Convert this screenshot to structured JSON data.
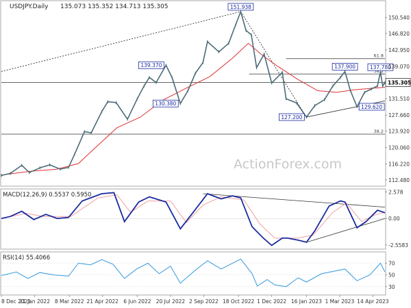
{
  "chart_data": {
    "type": "line",
    "instrument_label": "USDJPY.Daily",
    "ohlc_label": "135.073 135.352 134.713 135.305",
    "watermark": "ActionForex.com",
    "price_panel": {
      "ylim": [
        111.0,
        154.5
      ],
      "y_ticks": [
        "150.540",
        "146.820",
        "142.950",
        "139.070",
        "135.305",
        "131.510",
        "127.660",
        "123.920",
        "120.060",
        "116.220",
        "112.480"
      ],
      "last_price_label": "135.305",
      "ma_series": "55 day EMA",
      "series": [
        {
          "name": "price",
          "points": [
            [
              "2021-12-08",
              113.5
            ],
            [
              "2021-12-20",
              114.0
            ],
            [
              "2022-01-04",
              115.9
            ],
            [
              "2022-01-14",
              114.2
            ],
            [
              "2022-01-28",
              115.3
            ],
            [
              "2022-02-10",
              116.0
            ],
            [
              "2022-02-24",
              115.0
            ],
            [
              "2022-03-07",
              115.4
            ],
            [
              "2022-03-15",
              118.5
            ],
            [
              "2022-03-28",
              123.8
            ],
            [
              "2022-04-06",
              123.5
            ],
            [
              "2022-04-20",
              128.5
            ],
            [
              "2022-04-28",
              130.8
            ],
            [
              "2022-05-09",
              130.6
            ],
            [
              "2022-05-24",
              126.7
            ],
            [
              "2022-06-06",
              131.5
            ],
            [
              "2022-06-15",
              134.5
            ],
            [
              "2022-06-22",
              136.5
            ],
            [
              "2022-07-01",
              135.3
            ],
            [
              "2022-07-14",
              139.37
            ],
            [
              "2022-07-22",
              136.5
            ],
            [
              "2022-08-02",
              130.38
            ],
            [
              "2022-08-12",
              133.4
            ],
            [
              "2022-08-22",
              137.5
            ],
            [
              "2022-09-01",
              140.0
            ],
            [
              "2022-09-07",
              144.9
            ],
            [
              "2022-09-22",
              142.5
            ],
            [
              "2022-10-05",
              144.5
            ],
            [
              "2022-10-14",
              148.7
            ],
            [
              "2022-10-21",
              151.938
            ],
            [
              "2022-10-28",
              147.5
            ],
            [
              "2022-11-04",
              146.5
            ],
            [
              "2022-11-11",
              138.8
            ],
            [
              "2022-11-21",
              142.0
            ],
            [
              "2022-12-01",
              135.2
            ],
            [
              "2022-12-15",
              137.7
            ],
            [
              "2022-12-20",
              131.5
            ],
            [
              "2023-01-03",
              130.5
            ],
            [
              "2023-01-16",
              127.2
            ],
            [
              "2023-01-27",
              129.9
            ],
            [
              "2023-02-09",
              131.3
            ],
            [
              "2023-02-20",
              134.5
            ],
            [
              "2023-03-02",
              136.5
            ],
            [
              "2023-03-08",
              137.9
            ],
            [
              "2023-03-15",
              133.5
            ],
            [
              "2023-03-24",
              129.62
            ],
            [
              "2023-04-03",
              133.0
            ],
            [
              "2023-04-12",
              133.8
            ],
            [
              "2023-04-20",
              134.5
            ],
            [
              "2023-04-24",
              137.78
            ],
            [
              "2023-04-27",
              134.5
            ],
            [
              "2023-04-30",
              135.305
            ]
          ]
        },
        {
          "name": "55 day EMA",
          "points": [
            [
              "2021-12-08",
              113.6
            ],
            [
              "2022-01-15",
              114.5
            ],
            [
              "2022-02-20",
              115.0
            ],
            [
              "2022-03-20",
              116.3
            ],
            [
              "2022-04-10",
              119.8
            ],
            [
              "2022-05-10",
              124.7
            ],
            [
              "2022-06-10",
              127.2
            ],
            [
              "2022-07-10",
              131.2
            ],
            [
              "2022-08-10",
              134.0
            ],
            [
              "2022-09-10",
              136.7
            ],
            [
              "2022-10-10",
              141.0
            ],
            [
              "2022-10-31",
              144.5
            ],
            [
              "2022-11-20",
              141.5
            ],
            [
              "2022-12-10",
              139.0
            ],
            [
              "2023-01-05",
              136.0
            ],
            [
              "2023-01-31",
              133.4
            ],
            [
              "2023-02-25",
              133.0
            ],
            [
              "2023-03-20",
              133.6
            ],
            [
              "2023-04-10",
              133.9
            ],
            [
              "2023-04-30",
              134.2
            ]
          ]
        }
      ],
      "price_labels": [
        {
          "text": "151.938",
          "date": "2022-10-21",
          "price": 151.938,
          "pos": "above"
        },
        {
          "text": "139.370",
          "date": "2022-07-14",
          "price": 139.37,
          "pos": "left"
        },
        {
          "text": "130.380",
          "date": "2022-08-02",
          "price": 130.38,
          "pos": "left"
        },
        {
          "text": "137.900",
          "date": "2023-03-08",
          "price": 137.9,
          "pos": "above"
        },
        {
          "text": "137.780",
          "date": "2023-04-24",
          "price": 137.78,
          "pos": "above"
        },
        {
          "text": "127.200",
          "date": "2023-01-16",
          "price": 127.2,
          "pos": "left"
        },
        {
          "text": "129.620",
          "date": "2023-03-24",
          "price": 129.62,
          "pos": "right"
        }
      ],
      "fib_levels": [
        {
          "label": "61.8",
          "price": 140.9,
          "from": "2022-12-20"
        },
        {
          "label": "38.2",
          "price": 137.3,
          "from": "2023-04-26"
        },
        {
          "label": "38.2",
          "price": 123.2,
          "from": "2021-12-08"
        }
      ],
      "trend_lines": [
        {
          "from": [
            "2021-12-08",
            137.9
          ],
          "to": [
            "2022-10-21",
            151.938
          ],
          "dash": true
        },
        {
          "from": [
            "2022-10-21",
            151.938
          ],
          "to": [
            "2023-01-16",
            127.2
          ],
          "dash": true
        },
        {
          "from": [
            "2023-01-16",
            127.2
          ],
          "to": [
            "2023-04-30",
            131.0
          ],
          "dash": false
        }
      ],
      "horizontal_lines": [
        {
          "price": 137.3,
          "from": "2022-11-01",
          "to": "2023-04-30"
        },
        {
          "price": 135.3,
          "from": "2021-12-08",
          "to": "2023-04-30"
        }
      ]
    },
    "macd_panel": {
      "label": "MACD(12,26,9) 0.5537 0.5950",
      "ylim": [
        -2.9,
        2.8
      ],
      "y_ticks": [
        "2.578",
        "0.00",
        "-2.5583"
      ],
      "series": [
        {
          "name": "MACD",
          "points": [
            [
              "2021-12-08",
              0.0
            ],
            [
              "2021-12-20",
              0.2
            ],
            [
              "2022-01-04",
              0.7
            ],
            [
              "2022-01-20",
              -0.1
            ],
            [
              "2022-02-05",
              0.4
            ],
            [
              "2022-02-20",
              0.0
            ],
            [
              "2022-03-07",
              0.1
            ],
            [
              "2022-03-25",
              1.7
            ],
            [
              "2022-04-20",
              2.4
            ],
            [
              "2022-05-06",
              2.5
            ],
            [
              "2022-05-20",
              -0.3
            ],
            [
              "2022-06-08",
              1.6
            ],
            [
              "2022-06-22",
              2.1
            ],
            [
              "2022-07-14",
              1.6
            ],
            [
              "2022-08-02",
              -1.0
            ],
            [
              "2022-08-18",
              0.5
            ],
            [
              "2022-09-07",
              2.4
            ],
            [
              "2022-09-25",
              1.9
            ],
            [
              "2022-10-10",
              2.2
            ],
            [
              "2022-10-21",
              2.0
            ],
            [
              "2022-11-05",
              -0.8
            ],
            [
              "2022-11-20",
              -1.9
            ],
            [
              "2022-12-01",
              -2.6
            ],
            [
              "2022-12-15",
              -1.9
            ],
            [
              "2022-12-22",
              -1.9
            ],
            [
              "2023-01-05",
              -2.1
            ],
            [
              "2023-01-16",
              -2.3
            ],
            [
              "2023-01-27",
              -1.2
            ],
            [
              "2023-02-15",
              1.2
            ],
            [
              "2023-03-02",
              1.7
            ],
            [
              "2023-03-08",
              1.6
            ],
            [
              "2023-03-24",
              -0.9
            ],
            [
              "2023-04-05",
              -0.3
            ],
            [
              "2023-04-20",
              0.8
            ],
            [
              "2023-04-30",
              0.55
            ]
          ]
        },
        {
          "name": "Signal",
          "points": [
            [
              "2021-12-08",
              0.0
            ],
            [
              "2022-01-10",
              0.5
            ],
            [
              "2022-02-01",
              0.2
            ],
            [
              "2022-03-10",
              0.2
            ],
            [
              "2022-04-15",
              2.0
            ],
            [
              "2022-05-10",
              2.3
            ],
            [
              "2022-05-28",
              0.6
            ],
            [
              "2022-06-20",
              1.7
            ],
            [
              "2022-07-20",
              1.7
            ],
            [
              "2022-08-10",
              -0.4
            ],
            [
              "2022-09-01",
              1.3
            ],
            [
              "2022-09-25",
              2.1
            ],
            [
              "2022-10-25",
              1.8
            ],
            [
              "2022-11-15",
              -0.5
            ],
            [
              "2022-12-05",
              -1.9
            ],
            [
              "2023-01-05",
              -1.9
            ],
            [
              "2023-01-25",
              -1.6
            ],
            [
              "2023-02-20",
              0.6
            ],
            [
              "2023-03-10",
              1.5
            ],
            [
              "2023-03-30",
              -0.3
            ],
            [
              "2023-04-15",
              0.3
            ],
            [
              "2023-04-30",
              0.6
            ]
          ]
        }
      ],
      "trend_lines": [
        {
          "from": [
            "2022-09-01",
            2.4
          ],
          "to": [
            "2023-04-30",
            1.1
          ]
        },
        {
          "from": [
            "2023-01-16",
            -2.3
          ],
          "to": [
            "2023-04-30",
            0.0
          ]
        }
      ]
    },
    "rsi_panel": {
      "label": "RSI(14) 55.4066",
      "ylim": [
        17,
        88
      ],
      "y_ticks": [
        "70",
        "50",
        "30"
      ],
      "series": [
        {
          "name": "RSI",
          "points": [
            [
              "2021-12-08",
              49
            ],
            [
              "2021-12-28",
              55
            ],
            [
              "2022-01-12",
              44
            ],
            [
              "2022-01-28",
              54
            ],
            [
              "2022-02-15",
              50
            ],
            [
              "2022-03-07",
              48
            ],
            [
              "2022-03-20",
              70
            ],
            [
              "2022-04-05",
              67
            ],
            [
              "2022-04-20",
              76
            ],
            [
              "2022-05-05",
              68
            ],
            [
              "2022-05-20",
              44
            ],
            [
              "2022-06-05",
              60
            ],
            [
              "2022-06-20",
              70
            ],
            [
              "2022-07-05",
              52
            ],
            [
              "2022-07-20",
              65
            ],
            [
              "2022-08-02",
              36
            ],
            [
              "2022-08-20",
              56
            ],
            [
              "2022-09-07",
              74
            ],
            [
              "2022-09-25",
              60
            ],
            [
              "2022-10-21",
              77
            ],
            [
              "2022-11-05",
              52
            ],
            [
              "2022-11-12",
              31
            ],
            [
              "2022-11-25",
              42
            ],
            [
              "2022-12-05",
              33
            ],
            [
              "2022-12-20",
              30
            ],
            [
              "2023-01-05",
              45
            ],
            [
              "2023-01-16",
              38
            ],
            [
              "2023-02-05",
              52
            ],
            [
              "2023-03-08",
              60
            ],
            [
              "2023-03-24",
              40
            ],
            [
              "2023-04-10",
              50
            ],
            [
              "2023-04-24",
              70
            ],
            [
              "2023-04-30",
              55
            ]
          ]
        }
      ]
    },
    "x_axis": {
      "start": "2021-12-08",
      "end": "2023-04-30",
      "ticks": [
        {
          "label": "8 Dec 2021",
          "date": "2021-12-08"
        },
        {
          "label": "21 Jan 2022",
          "date": "2022-01-21"
        },
        {
          "label": "8 Mar 2022",
          "date": "2022-03-08"
        },
        {
          "label": "21 Apr 2022",
          "date": "2022-04-21"
        },
        {
          "label": "6 Jun 2022",
          "date": "2022-06-06"
        },
        {
          "label": "20 Jul 2022",
          "date": "2022-07-20"
        },
        {
          "label": "2 Sep 2022",
          "date": "2022-09-02"
        },
        {
          "label": "18 Oct 2022",
          "date": "2022-10-18"
        },
        {
          "label": "1 Dec 2022",
          "date": "2022-12-01"
        },
        {
          "label": "16 Jan 2023",
          "date": "2023-01-16"
        },
        {
          "label": "1 Mar 2023",
          "date": "2023-03-01"
        },
        {
          "label": "14 Apr 2023",
          "date": "2023-04-14"
        }
      ]
    },
    "colors": {
      "price": "#4a6b78",
      "ema": "#e03030",
      "macd": "#1a2a9e",
      "signal": "#f0a0a0",
      "rsi": "#3399dd",
      "trend": "#333333",
      "label_border": "#1a2a9e",
      "label_text": "#1a2a9e",
      "grid": "#e8e8e8",
      "watermark": "#c8c8c8"
    }
  }
}
